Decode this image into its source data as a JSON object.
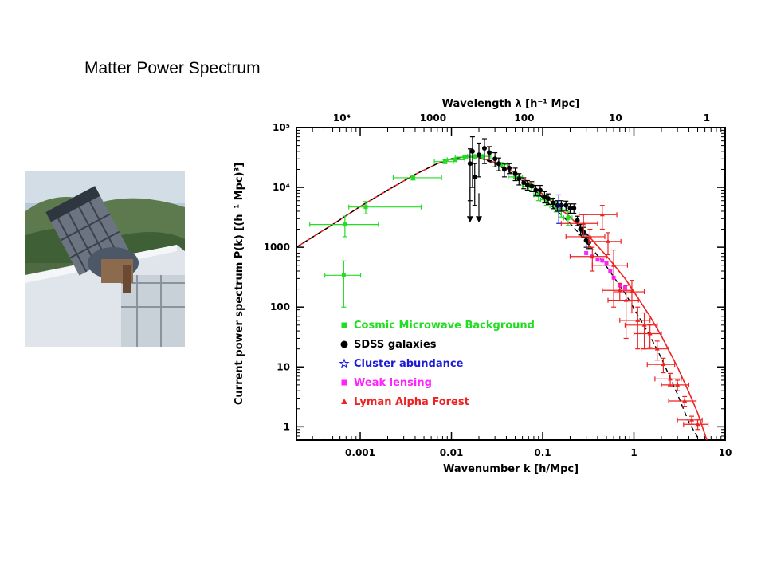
{
  "slide": {
    "title": "Matter Power Spectrum"
  },
  "photo": {
    "description_icon": "telescope-photo"
  },
  "colors": {
    "cmb": "#22dd22",
    "sdss": "#000000",
    "cluster": "#1a1ad8",
    "weak": "#ff22ff",
    "lyman": "#ee2222",
    "model_solid": "#ee2222",
    "model_dashed": "#000000"
  },
  "chart_data": {
    "type": "scatter",
    "xscale": "log",
    "yscale": "log",
    "xlabel": "Wavenumber k [h/Mpc]",
    "ylabel": "Current power spectrum P(k) [(h⁻¹ Mpc)³]",
    "top_axis_label": "Wavelength λ [h⁻¹ Mpc]",
    "xlim": [
      0.0002,
      10
    ],
    "ylim": [
      0.6,
      100000
    ],
    "x_ticks": [
      "0.001",
      "0.01",
      "0.1",
      "1",
      "10"
    ],
    "y_ticks": [
      "1",
      "10",
      "100",
      "1000",
      "10⁴",
      "10⁵"
    ],
    "top_ticks": [
      "10⁴",
      "1000",
      "100",
      "10",
      "1"
    ],
    "legend": [
      {
        "label": "Cosmic Microwave Background",
        "marker": "square",
        "color": "#22dd22"
      },
      {
        "label": "SDSS galaxies",
        "marker": "circle",
        "color": "#000000"
      },
      {
        "label": "Cluster abundance",
        "marker": "star",
        "color": "#1a1ad8"
      },
      {
        "label": "Weak lensing",
        "marker": "square",
        "color": "#ff22ff"
      },
      {
        "label": "Lyman Alpha Forest",
        "marker": "triangle",
        "color": "#ee2222"
      }
    ],
    "model_solid": {
      "x": [
        0.0002,
        0.0005,
        0.001,
        0.002,
        0.004,
        0.007,
        0.01,
        0.015,
        0.02,
        0.03,
        0.05,
        0.08,
        0.1,
        0.15,
        0.2,
        0.3,
        0.5,
        0.8,
        1,
        1.5,
        2,
        3,
        4,
        5,
        6.3
      ],
      "y": [
        1000,
        2400,
        4800,
        9000,
        16500,
        25000,
        30000,
        33000,
        32000,
        26000,
        17500,
        10500,
        7700,
        4600,
        3200,
        1700,
        720,
        300,
        180,
        70,
        33,
        10,
        3.8,
        1.7,
        0.6
      ]
    },
    "model_dashed": {
      "x": [
        0.0002,
        0.0005,
        0.001,
        0.002,
        0.004,
        0.007,
        0.01,
        0.015,
        0.02,
        0.03,
        0.05,
        0.08,
        0.1,
        0.15,
        0.2,
        0.3,
        0.5,
        0.8,
        1,
        1.5,
        2,
        3,
        4,
        5.2
      ],
      "y": [
        1000,
        2400,
        4800,
        9000,
        16500,
        25000,
        30000,
        33000,
        31500,
        25000,
        16000,
        9300,
        6700,
        3800,
        2500,
        1250,
        480,
        170,
        95,
        33,
        14,
        3.5,
        1.2,
        0.6
      ]
    },
    "series": [
      {
        "name": "Cosmic Microwave Background",
        "x": [
          0.00066,
          0.00068,
          0.00115,
          0.0038,
          0.0085,
          0.011,
          0.014,
          0.018,
          0.022,
          0.035,
          0.05,
          0.07,
          0.09,
          0.11,
          0.14,
          0.16,
          0.19
        ],
        "y": [
          340,
          2400,
          4700,
          14500,
          27000,
          29000,
          32000,
          33000,
          33000,
          24000,
          15000,
          10500,
          7500,
          6200,
          4900,
          4200,
          3100
        ],
        "xerr_lo": [
          0.00025,
          0.0004,
          0.0004,
          0.0015,
          0.002,
          0.002,
          0.003,
          0.003,
          0.004,
          0.005,
          0.008,
          0.01,
          0.01,
          0.015,
          0.02,
          0.02,
          0.02
        ],
        "xerr_hi": [
          0.00035,
          0.0009,
          0.0035,
          0.004,
          0.002,
          0.003,
          0.004,
          0.004,
          0.005,
          0.006,
          0.01,
          0.01,
          0.015,
          0.02,
          0.02,
          0.02,
          0.02
        ],
        "yerr_lo": [
          240,
          900,
          1100,
          1200,
          2000,
          2000,
          2000,
          2000,
          2000,
          2000,
          2000,
          1500,
          1500,
          1200,
          1000,
          1000,
          800
        ],
        "yerr_hi": [
          250,
          900,
          1100,
          1200,
          2000,
          2000,
          2000,
          2000,
          2000,
          2000,
          2000,
          1500,
          1500,
          1200,
          1000,
          1000,
          800
        ]
      },
      {
        "name": "SDSS galaxies",
        "x": [
          0.016,
          0.017,
          0.018,
          0.02,
          0.023,
          0.026,
          0.03,
          0.033,
          0.038,
          0.043,
          0.05,
          0.055,
          0.062,
          0.068,
          0.076,
          0.084,
          0.094,
          0.105,
          0.115,
          0.13,
          0.145,
          0.16,
          0.18,
          0.2,
          0.22,
          0.24,
          0.26,
          0.28,
          0.3,
          0.32
        ],
        "y": [
          25000,
          40000,
          15000,
          35000,
          45000,
          38000,
          30000,
          25000,
          20000,
          21000,
          17000,
          14000,
          12000,
          11000,
          10500,
          9000,
          9000,
          7000,
          6500,
          5500,
          5000,
          5000,
          5000,
          4500,
          4500,
          2800,
          2000,
          1800,
          1300,
          1200
        ],
        "yerr_lo": [
          19000,
          30000,
          10000,
          20000,
          20000,
          10000,
          8000,
          6000,
          5000,
          4000,
          4000,
          3000,
          2500,
          2000,
          2000,
          1800,
          1800,
          1500,
          1300,
          1100,
          1000,
          1000,
          900,
          800,
          800,
          500,
          400,
          350,
          300,
          250
        ],
        "yerr_hi": [
          19000,
          30000,
          10000,
          20000,
          20000,
          10000,
          8000,
          6000,
          5000,
          4000,
          4000,
          3000,
          2500,
          2000,
          2000,
          1800,
          1800,
          1500,
          1300,
          1100,
          1000,
          1000,
          900,
          800,
          800,
          500,
          400,
          350,
          300,
          250
        ]
      },
      {
        "name": "Cluster abundance",
        "x": [
          0.15
        ],
        "y": [
          5000
        ],
        "yerr_lo": [
          2500
        ],
        "yerr_hi": [
          2500
        ]
      },
      {
        "name": "Weak lensing",
        "x": [
          0.3,
          0.35,
          0.4,
          0.45,
          0.5,
          0.55,
          0.6,
          0.7,
          0.8
        ],
        "y": [
          800,
          700,
          620,
          600,
          550,
          400,
          310,
          230,
          210
        ]
      },
      {
        "name": "Lyman Alpha Forest",
        "x": [
          0.28,
          0.33,
          0.35,
          0.45,
          0.52,
          0.6,
          0.7,
          0.82,
          0.95,
          1.1,
          1.3,
          1.5,
          1.8,
          2.1,
          2.5,
          3,
          3.6,
          4.3,
          5
        ],
        "y": [
          2500,
          1500,
          700,
          3500,
          1250,
          500,
          190,
          130,
          180,
          60,
          50,
          36,
          20,
          11,
          6.3,
          5,
          2.7,
          1.3,
          1.1
        ],
        "yerr_lo": [
          1000,
          500,
          300,
          1500,
          500,
          400,
          60,
          100,
          100,
          40,
          30,
          15,
          7,
          3,
          1.5,
          1,
          0.5,
          0.2,
          0.2
        ],
        "yerr_hi": [
          1000,
          500,
          300,
          1500,
          500,
          400,
          60,
          100,
          100,
          40,
          30,
          15,
          7,
          3,
          1.5,
          1,
          0.5,
          0.2,
          0.2
        ],
        "xerr_lo": [
          0.12,
          0.15,
          0.15,
          0.2,
          0.2,
          0.25,
          0.25,
          0.3,
          0.35,
          0.4,
          0.5,
          0.5,
          0.6,
          0.7,
          0.8,
          1,
          1.2,
          1.3,
          1.5
        ],
        "xerr_hi": [
          0.12,
          0.15,
          0.15,
          0.2,
          0.2,
          0.25,
          0.25,
          0.3,
          0.35,
          0.4,
          0.5,
          0.5,
          0.6,
          0.7,
          0.8,
          1,
          1.2,
          1.3,
          1.5
        ]
      }
    ],
    "upper_limits": {
      "x": [
        0.016,
        0.02
      ],
      "y_from": [
        10000,
        8000
      ],
      "y_to": [
        3300,
        3300
      ]
    }
  }
}
